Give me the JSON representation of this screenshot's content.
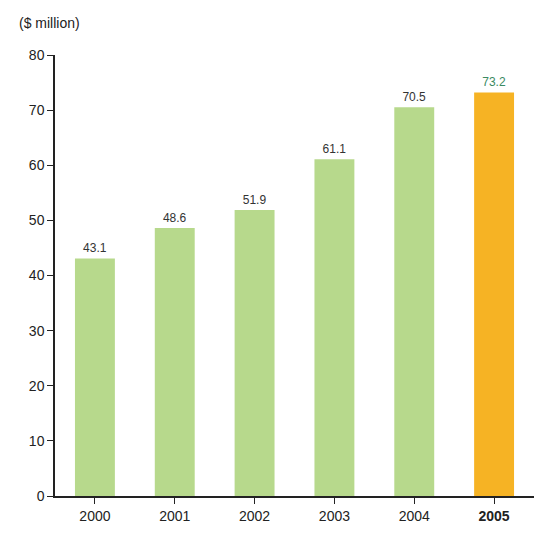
{
  "chart_data": {
    "type": "bar",
    "ylabel": "($ million)",
    "categories": [
      "2000",
      "2001",
      "2002",
      "2003",
      "2004",
      "2005"
    ],
    "values": [
      43.1,
      48.6,
      51.9,
      61.1,
      70.5,
      73.2
    ],
    "colors": [
      "#b7d98c",
      "#b7d98c",
      "#b7d98c",
      "#b7d98c",
      "#b7d98c",
      "#f6b324"
    ],
    "ylim": [
      0,
      80
    ],
    "yticks": [
      0,
      10,
      20,
      30,
      40,
      50,
      60,
      70,
      80
    ],
    "grid": false,
    "data_labels": true
  }
}
